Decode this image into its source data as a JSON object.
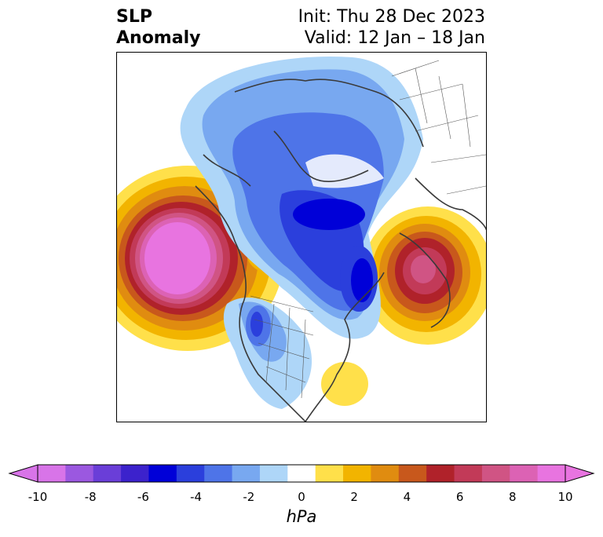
{
  "title": {
    "variable": "SLP",
    "subtitle": "Anomaly",
    "init": "Init: Thu 28 Dec 2023",
    "valid": "Valid: 12 Jan – 18 Jan"
  },
  "colorbar": {
    "units": "hPa",
    "ticks": [
      "-10",
      "-8",
      "-6",
      "-4",
      "-2",
      "0",
      "2",
      "4",
      "6",
      "8",
      "10"
    ],
    "levels": [
      -10,
      -9,
      -8,
      -7,
      -6,
      -5,
      -4,
      -3,
      -2,
      -1,
      1,
      2,
      3,
      4,
      5,
      6,
      7,
      8,
      9,
      10
    ],
    "colors": [
      "#d874e8",
      "#9b58e0",
      "#6a3ed8",
      "#3c22cc",
      "#0000d8",
      "#2b3fdc",
      "#4e74e8",
      "#78a8f0",
      "#aed6f8",
      "#ffffff",
      "#ffe04a",
      "#f2b400",
      "#e08c10",
      "#c8581c",
      "#b0222a",
      "#c23a58",
      "#d05484",
      "#dc62b4",
      "#e874e0"
    ],
    "extend": "both"
  },
  "map": {
    "projection": "north-polar-stereographic",
    "features": [
      "coastlines",
      "country-borders",
      "state-borders"
    ],
    "anomaly_centers": [
      {
        "region": "Gulf of Alaska / NE Pacific",
        "sign": "positive",
        "max_hpa": 10
      },
      {
        "region": "Scandinavia / NW Europe",
        "sign": "positive",
        "max_hpa": 7
      },
      {
        "region": "Siberian Arctic",
        "sign": "negative",
        "max_hpa": -7
      },
      {
        "region": "Greenland / North Atlantic",
        "sign": "negative",
        "max_hpa": -6
      },
      {
        "region": "Western United States",
        "sign": "negative",
        "max_hpa": -5
      },
      {
        "region": "Western Atlantic off SE US",
        "sign": "positive",
        "max_hpa": 1
      }
    ]
  }
}
